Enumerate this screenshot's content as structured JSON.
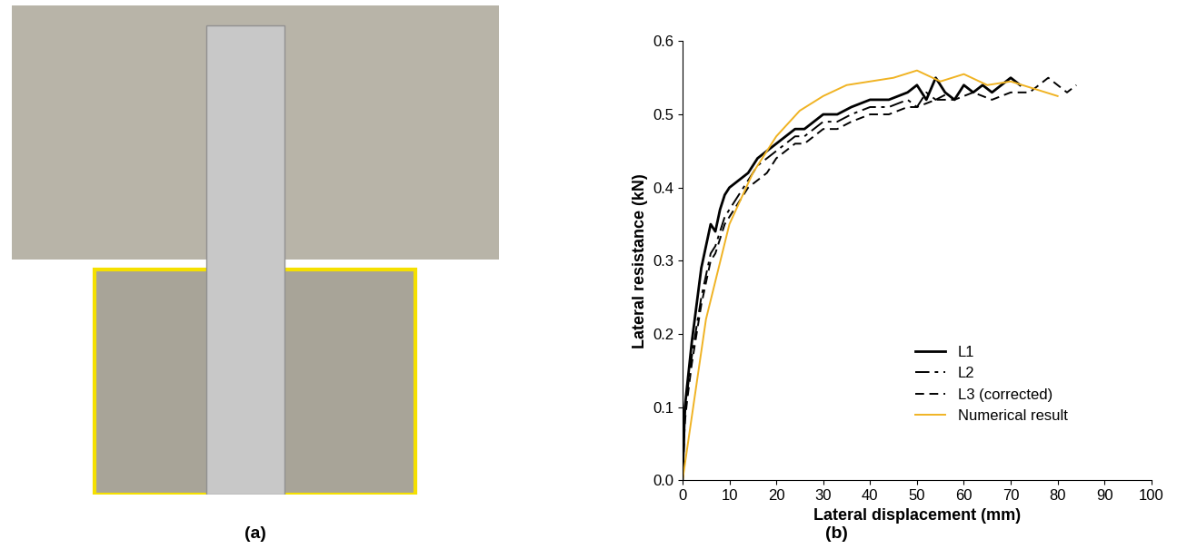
{
  "panel_labels": [
    "(a)",
    "(b)"
  ],
  "chart_data": {
    "type": "line",
    "x_label": "Lateral displacement (mm)",
    "y_label": "Lateral resistance (kN)",
    "xlim": [
      0,
      100
    ],
    "ylim": [
      0,
      0.6
    ],
    "xticks": [
      0,
      10,
      20,
      30,
      40,
      50,
      60,
      70,
      80,
      90,
      100
    ],
    "yticks": [
      0.0,
      0.1,
      0.2,
      0.3,
      0.4,
      0.5,
      0.6
    ],
    "legend": "lower right",
    "series": [
      {
        "name": "L1",
        "color": "#000000",
        "line_style": "solid",
        "x": [
          0,
          0.5,
          1,
          2,
          3,
          4,
          5,
          6,
          7,
          8,
          9,
          10,
          12,
          14,
          16,
          18,
          20,
          22,
          24,
          26,
          28,
          30,
          33,
          36,
          40,
          44,
          48,
          50,
          52,
          54,
          56,
          58,
          60,
          62,
          64,
          66,
          68,
          70,
          72
        ],
        "values": [
          0,
          0.1,
          0.13,
          0.19,
          0.24,
          0.29,
          0.32,
          0.35,
          0.34,
          0.37,
          0.39,
          0.4,
          0.41,
          0.42,
          0.44,
          0.45,
          0.46,
          0.47,
          0.48,
          0.48,
          0.49,
          0.5,
          0.5,
          0.51,
          0.52,
          0.52,
          0.53,
          0.54,
          0.52,
          0.55,
          0.53,
          0.52,
          0.54,
          0.53,
          0.54,
          0.53,
          0.54,
          0.55,
          0.54
        ]
      },
      {
        "name": "L2",
        "color": "#000000",
        "line_style": "dashdot",
        "x": [
          0,
          0.5,
          1,
          2,
          3,
          4,
          5,
          6,
          7,
          8,
          9,
          10,
          12,
          14,
          16,
          18,
          20,
          22,
          24,
          26,
          28,
          30,
          33,
          36,
          40,
          44,
          48,
          50,
          52,
          54,
          57
        ],
        "values": [
          0,
          0.09,
          0.12,
          0.17,
          0.21,
          0.25,
          0.28,
          0.31,
          0.32,
          0.34,
          0.36,
          0.37,
          0.39,
          0.41,
          0.43,
          0.44,
          0.45,
          0.46,
          0.47,
          0.47,
          0.48,
          0.49,
          0.49,
          0.5,
          0.51,
          0.51,
          0.52,
          0.51,
          0.53,
          0.52,
          0.53
        ]
      },
      {
        "name": "L3 (corrected)",
        "color": "#000000",
        "line_style": "dashed",
        "x": [
          0,
          0.5,
          1,
          2,
          3,
          4,
          5,
          6,
          7,
          8,
          9,
          10,
          12,
          14,
          16,
          18,
          20,
          22,
          24,
          26,
          28,
          30,
          33,
          36,
          40,
          44,
          48,
          50,
          54,
          58,
          62,
          66,
          70,
          74,
          78,
          80,
          82,
          84
        ],
        "values": [
          0,
          0.08,
          0.11,
          0.16,
          0.2,
          0.24,
          0.27,
          0.3,
          0.31,
          0.33,
          0.35,
          0.36,
          0.38,
          0.4,
          0.41,
          0.42,
          0.44,
          0.45,
          0.46,
          0.46,
          0.47,
          0.48,
          0.48,
          0.49,
          0.5,
          0.5,
          0.51,
          0.51,
          0.52,
          0.52,
          0.53,
          0.52,
          0.53,
          0.53,
          0.55,
          0.54,
          0.53,
          0.54
        ]
      },
      {
        "name": "Numerical result",
        "color": "#f0b323",
        "line_style": "solid",
        "x": [
          0,
          5,
          10,
          15,
          20,
          25,
          30,
          35,
          40,
          45,
          50,
          55,
          60,
          65,
          70,
          75,
          80
        ],
        "values": [
          0,
          0.22,
          0.35,
          0.42,
          0.47,
          0.505,
          0.525,
          0.54,
          0.545,
          0.55,
          0.56,
          0.545,
          0.555,
          0.54,
          0.545,
          0.535,
          0.525
        ]
      }
    ]
  }
}
